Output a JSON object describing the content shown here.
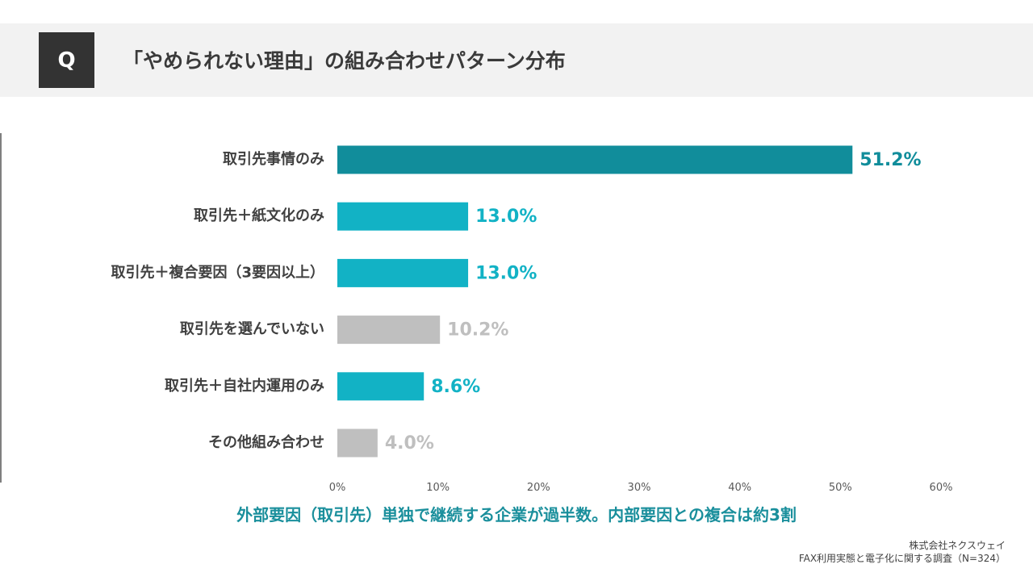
{
  "header": {
    "badge": "Q",
    "title": "「やめられない理由」の組み合わせパターン分布"
  },
  "chart_data": {
    "type": "bar",
    "orientation": "horizontal",
    "categories": [
      "取引先事情のみ",
      "取引先＋紙文化のみ",
      "取引先＋複合要因（3要因以上）",
      "取引先を選んでいない",
      "取引先＋自社内運用のみ",
      "その他組み合わせ"
    ],
    "values": [
      51.2,
      13.0,
      13.0,
      10.2,
      8.6,
      4.0
    ],
    "value_labels": [
      "51.2%",
      "13.0%",
      "13.0%",
      "10.2%",
      "8.6%",
      "4.0%"
    ],
    "bar_colors": [
      "#118d9b",
      "#12b2c5",
      "#12b2c5",
      "#bfbfbf",
      "#12b2c5",
      "#bfbfbf"
    ],
    "label_colors": [
      "#118d9b",
      "#12b2c5",
      "#12b2c5",
      "#bfbfbf",
      "#12b2c5",
      "#bfbfbf"
    ],
    "xlim": [
      0,
      60
    ],
    "xticks": [
      0,
      10,
      20,
      30,
      40,
      50,
      60
    ],
    "xtick_labels": [
      "0%",
      "10%",
      "20%",
      "30%",
      "40%",
      "50%",
      "60%"
    ],
    "grid": false,
    "legend": "none"
  },
  "footer": {
    "subtitle": "外部要因（取引先）単独で継続する企業が過半数。内部要因との複合は約3割",
    "company": "株式会社ネクスウェイ",
    "survey": "FAX利用実態と電子化に関する調査（N=324）"
  }
}
